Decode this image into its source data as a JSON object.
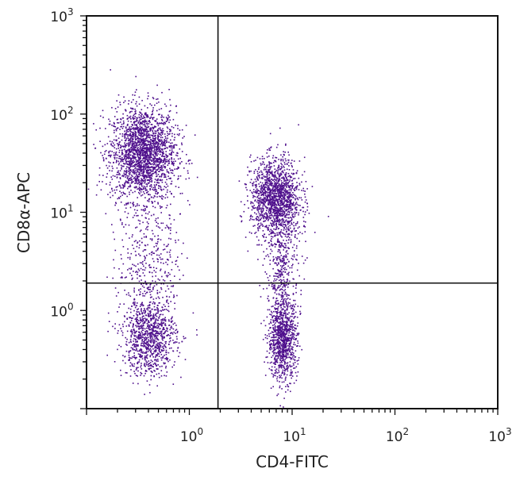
{
  "chart_data": {
    "type": "scatter",
    "xlabel": "CD4-FITC",
    "ylabel": "CD8α-APC",
    "x_scale": "log",
    "y_scale": "log",
    "xlim": [
      0.1,
      1000
    ],
    "ylim": [
      0.1,
      1000
    ],
    "x_ticks": [
      {
        "base": "10",
        "exp": "0",
        "value": 1
      },
      {
        "base": "10",
        "exp": "1",
        "value": 10
      },
      {
        "base": "10",
        "exp": "2",
        "value": 100
      },
      {
        "base": "10",
        "exp": "3",
        "value": 1000
      }
    ],
    "y_ticks": [
      {
        "base": "10",
        "exp": "0",
        "value": 1
      },
      {
        "base": "10",
        "exp": "1",
        "value": 10
      },
      {
        "base": "10",
        "exp": "2",
        "value": 100
      },
      {
        "base": "10",
        "exp": "3",
        "value": 1000
      }
    ],
    "grid": false,
    "quadrant_gate": {
      "x": 1.9,
      "y": 1.9
    },
    "point_color": "#4e0f8c",
    "populations": [
      {
        "x_center": 0.35,
        "y_center": 40,
        "x_log_sd": 0.16,
        "y_log_sd": 0.24,
        "count": 2200
      },
      {
        "x_center": 6.8,
        "y_center": 14,
        "x_log_sd": 0.12,
        "y_log_sd": 0.2,
        "count": 1500
      },
      {
        "x_center": 8.0,
        "y_center": 0.5,
        "x_log_sd": 0.07,
        "y_log_sd": 0.2,
        "count": 900
      },
      {
        "x_center": 0.4,
        "y_center": 0.55,
        "x_log_sd": 0.13,
        "y_log_sd": 0.2,
        "count": 1000
      },
      {
        "x_center": 8.0,
        "y_center": 2.5,
        "x_log_sd": 0.08,
        "y_log_sd": 0.35,
        "count": 450
      },
      {
        "x_center": 0.4,
        "y_center": 3.5,
        "x_log_sd": 0.15,
        "y_log_sd": 0.3,
        "count": 350
      }
    ]
  }
}
